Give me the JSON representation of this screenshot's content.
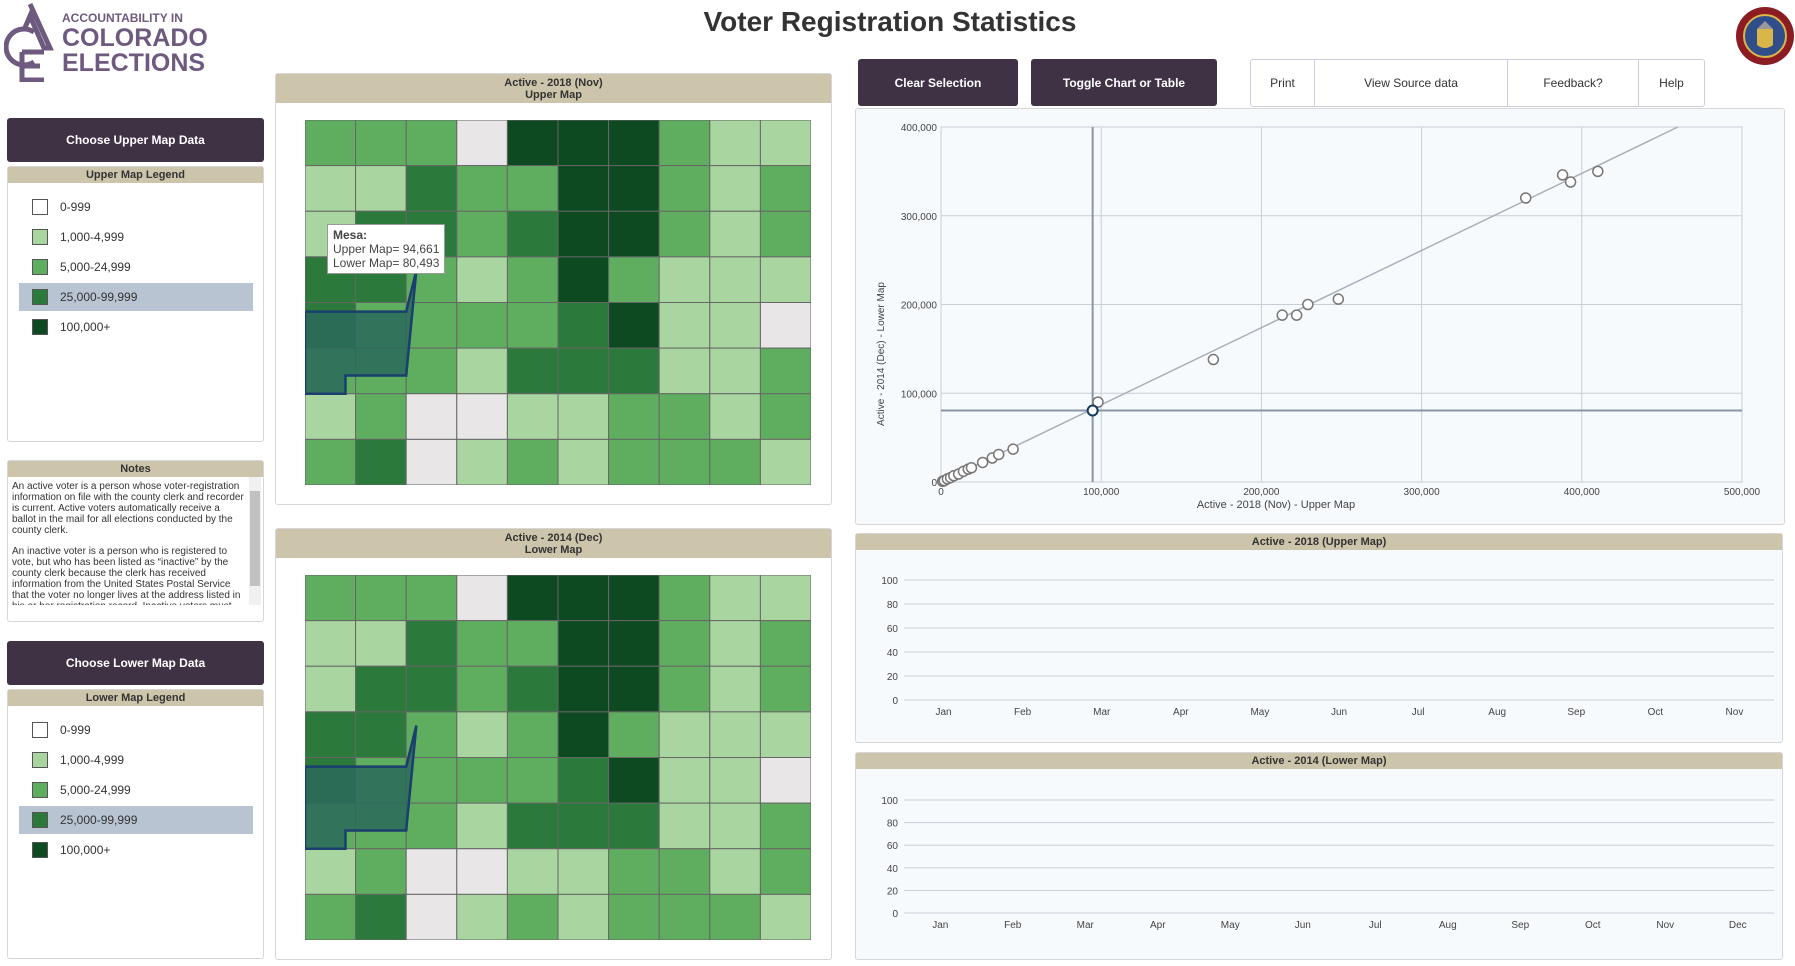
{
  "header": {
    "logo_line1": "ACCOUNTABILITY IN",
    "logo_line2": "COLORADO",
    "logo_line3": "ELECTIONS",
    "title": "Voter Registration Statistics",
    "seal_text": "STATE OF COLORADO 1876"
  },
  "left": {
    "upper_button": "Choose Upper Map Data",
    "upper_legend_title": "Upper Map Legend",
    "lower_button": "Choose Lower Map Data",
    "lower_legend_title": "Lower Map Legend",
    "legend": [
      {
        "label": "0-999",
        "color": "#ffffff"
      },
      {
        "label": "1,000-4,999",
        "color": "#a9d6a0"
      },
      {
        "label": "5,000-24,999",
        "color": "#5fae5f"
      },
      {
        "label": "25,000-99,999",
        "color": "#2b7a3b",
        "selected": true
      },
      {
        "label": "100,000+",
        "color": "#0d4a22"
      }
    ],
    "notes_title": "Notes",
    "notes": [
      "An active voter is a person whose voter-registration information on file with the county clerk and recorder is current. Active voters automatically receive a ballot in the mail for all elections conducted by the county clerk.",
      "An inactive voter is a person who is registered to vote, but who has been listed as “inactive” by the county clerk because the clerk has received information from the United States Postal Service that the voter no longer lives at the address listed in his or her registration record. Inactive voters must confirm or update their voter registration record"
    ]
  },
  "maps": {
    "upper": {
      "title1": "Active -  2018 (Nov)",
      "title2": "Upper Map"
    },
    "lower": {
      "title1": "Active -  2014 (Dec)",
      "title2": "Lower Map"
    },
    "tooltip": {
      "county": "Mesa:",
      "upper": "Upper Map= 94,661",
      "lower": "Lower Map= 80,493"
    },
    "highlight_color": "#1a3e6e"
  },
  "toolbar": {
    "clear": "Clear Selection",
    "toggle": "Toggle Chart or Table",
    "print": "Print",
    "source": "View Source data",
    "feedback": "Feedback?",
    "help": "Help"
  },
  "chart_data": [
    {
      "type": "scatter",
      "xlabel": "Active - 2018 (Nov) - Upper Map",
      "ylabel": "Active - 2014 (Dec) - Lower Map",
      "xlim": [
        0,
        500000
      ],
      "ylim": [
        0,
        400000
      ],
      "xticks": [
        "0",
        "100,000",
        "200,000",
        "300,000",
        "400,000",
        "500,000"
      ],
      "yticks": [
        "0",
        "100,000",
        "200,000",
        "300,000",
        "400,000"
      ],
      "grid": true,
      "points": [
        [
          1000,
          800
        ],
        [
          2000,
          1500
        ],
        [
          4000,
          3500
        ],
        [
          6000,
          5000
        ],
        [
          8000,
          7000
        ],
        [
          11000,
          9000
        ],
        [
          14000,
          12000
        ],
        [
          17000,
          14500
        ],
        [
          19000,
          16000
        ],
        [
          26000,
          22000
        ],
        [
          32000,
          27000
        ],
        [
          36000,
          31000
        ],
        [
          45000,
          37000
        ],
        [
          98000,
          90000
        ],
        [
          170000,
          138000
        ],
        [
          213000,
          188000
        ],
        [
          222000,
          188000
        ],
        [
          229000,
          200000
        ],
        [
          248000,
          206000
        ],
        [
          365000,
          320000
        ],
        [
          388000,
          346000
        ],
        [
          393000,
          338000
        ],
        [
          410000,
          350000
        ]
      ],
      "selected_point": [
        94661,
        80493
      ],
      "trendline": [
        [
          0,
          0
        ],
        [
          460000,
          400000
        ]
      ]
    },
    {
      "type": "line",
      "title": "Active - 2018  (Upper Map)",
      "ylim": [
        0,
        100
      ],
      "yticks": [
        "0",
        "20",
        "40",
        "60",
        "80",
        "100"
      ],
      "categories": [
        "Jan",
        "Feb",
        "Mar",
        "Apr",
        "May",
        "Jun",
        "Jul",
        "Aug",
        "Sep",
        "Oct",
        "Nov"
      ],
      "series": []
    },
    {
      "type": "line",
      "title": "Active - 2014  (Lower Map)",
      "ylim": [
        0,
        100
      ],
      "yticks": [
        "0",
        "20",
        "40",
        "60",
        "80",
        "100"
      ],
      "categories": [
        "Jan",
        "Feb",
        "Mar",
        "Apr",
        "May",
        "Jun",
        "Jul",
        "Aug",
        "Sep",
        "Oct",
        "Nov",
        "Dec"
      ],
      "series": []
    }
  ]
}
